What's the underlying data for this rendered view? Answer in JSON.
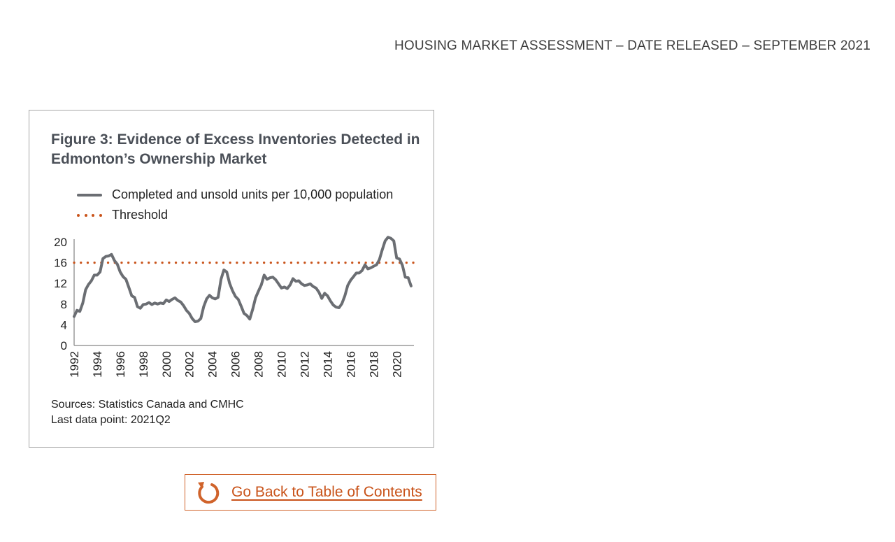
{
  "header": {
    "text": "HOUSING MARKET ASSESSMENT – DATE RELEASED – SEPTEMBER 2021"
  },
  "figure": {
    "title": "Figure 3: Evidence of Excess Inventories Detected in Edmonton’s Ownership Market",
    "sources": "Sources: Statistics Canada and CMHC",
    "last_point": "Last data point: 2021Q2"
  },
  "colors": {
    "series": "#6b6e73",
    "threshold": "#c9531a",
    "accent": "#d0632b"
  },
  "chart_data": {
    "type": "line",
    "title": "Figure 3: Evidence of Excess Inventories Detected in Edmonton’s Ownership Market",
    "xlabel": "",
    "ylabel": "",
    "xlim": [
      1992,
      2021.5
    ],
    "ylim": [
      0,
      20
    ],
    "yticks": [
      0,
      4,
      8,
      12,
      16,
      20
    ],
    "xticks": [
      1992,
      1994,
      1996,
      1998,
      2000,
      2002,
      2004,
      2006,
      2008,
      2010,
      2012,
      2014,
      2016,
      2018,
      2020
    ],
    "grid": false,
    "legend_position": "top",
    "series": [
      {
        "name": "Completed and unsold units per 10,000 population",
        "style": "solid",
        "points": [
          [
            1992.0,
            5.6
          ],
          [
            1992.25,
            6.8
          ],
          [
            1992.5,
            6.6
          ],
          [
            1992.75,
            8.2
          ],
          [
            1993.0,
            10.8
          ],
          [
            1993.25,
            11.8
          ],
          [
            1993.5,
            12.5
          ],
          [
            1993.75,
            13.6
          ],
          [
            1994.0,
            13.6
          ],
          [
            1994.25,
            14.2
          ],
          [
            1994.5,
            16.8
          ],
          [
            1994.75,
            17.2
          ],
          [
            1995.0,
            17.3
          ],
          [
            1995.25,
            17.6
          ],
          [
            1995.5,
            16.4
          ],
          [
            1995.75,
            15.7
          ],
          [
            1996.0,
            14.2
          ],
          [
            1996.25,
            13.3
          ],
          [
            1996.5,
            12.8
          ],
          [
            1996.75,
            11.2
          ],
          [
            1997.0,
            9.6
          ],
          [
            1997.25,
            9.3
          ],
          [
            1997.5,
            7.5
          ],
          [
            1997.75,
            7.2
          ],
          [
            1998.0,
            7.9
          ],
          [
            1998.25,
            8.0
          ],
          [
            1998.5,
            8.3
          ],
          [
            1998.75,
            7.9
          ],
          [
            1999.0,
            8.2
          ],
          [
            1999.25,
            8.0
          ],
          [
            1999.5,
            8.2
          ],
          [
            1999.75,
            8.1
          ],
          [
            2000.0,
            8.8
          ],
          [
            2000.25,
            8.5
          ],
          [
            2000.5,
            8.9
          ],
          [
            2000.75,
            9.2
          ],
          [
            2001.0,
            8.7
          ],
          [
            2001.25,
            8.4
          ],
          [
            2001.5,
            7.7
          ],
          [
            2001.75,
            6.8
          ],
          [
            2002.0,
            6.2
          ],
          [
            2002.25,
            5.2
          ],
          [
            2002.5,
            4.6
          ],
          [
            2002.75,
            4.7
          ],
          [
            2003.0,
            5.2
          ],
          [
            2003.25,
            7.5
          ],
          [
            2003.5,
            9.0
          ],
          [
            2003.75,
            9.7
          ],
          [
            2004.0,
            9.2
          ],
          [
            2004.25,
            9.0
          ],
          [
            2004.5,
            9.3
          ],
          [
            2004.75,
            12.8
          ],
          [
            2005.0,
            14.6
          ],
          [
            2005.25,
            14.2
          ],
          [
            2005.5,
            12.0
          ],
          [
            2005.75,
            10.6
          ],
          [
            2006.0,
            9.5
          ],
          [
            2006.25,
            8.9
          ],
          [
            2006.5,
            7.6
          ],
          [
            2006.75,
            6.2
          ],
          [
            2007.0,
            5.8
          ],
          [
            2007.25,
            5.1
          ],
          [
            2007.5,
            7.0
          ],
          [
            2007.75,
            9.2
          ],
          [
            2008.0,
            10.5
          ],
          [
            2008.25,
            11.7
          ],
          [
            2008.5,
            13.6
          ],
          [
            2008.75,
            12.8
          ],
          [
            2009.0,
            13.1
          ],
          [
            2009.25,
            13.2
          ],
          [
            2009.5,
            12.7
          ],
          [
            2009.75,
            11.9
          ],
          [
            2010.0,
            11.1
          ],
          [
            2010.25,
            11.3
          ],
          [
            2010.5,
            11.0
          ],
          [
            2010.75,
            11.7
          ],
          [
            2011.0,
            12.9
          ],
          [
            2011.25,
            12.4
          ],
          [
            2011.5,
            12.5
          ],
          [
            2011.75,
            11.9
          ],
          [
            2012.0,
            11.6
          ],
          [
            2012.25,
            11.7
          ],
          [
            2012.5,
            11.9
          ],
          [
            2012.75,
            11.4
          ],
          [
            2013.0,
            11.1
          ],
          [
            2013.25,
            10.3
          ],
          [
            2013.5,
            9.1
          ],
          [
            2013.75,
            10.1
          ],
          [
            2014.0,
            9.6
          ],
          [
            2014.25,
            8.6
          ],
          [
            2014.5,
            7.8
          ],
          [
            2014.75,
            7.4
          ],
          [
            2015.0,
            7.3
          ],
          [
            2015.25,
            8.1
          ],
          [
            2015.5,
            9.6
          ],
          [
            2015.75,
            11.6
          ],
          [
            2016.0,
            12.6
          ],
          [
            2016.25,
            13.3
          ],
          [
            2016.5,
            14.0
          ],
          [
            2016.75,
            14.0
          ],
          [
            2017.0,
            14.5
          ],
          [
            2017.25,
            15.6
          ],
          [
            2017.5,
            14.8
          ],
          [
            2017.75,
            15.0
          ],
          [
            2018.0,
            15.3
          ],
          [
            2018.25,
            15.6
          ],
          [
            2018.5,
            16.6
          ],
          [
            2018.75,
            18.5
          ],
          [
            2019.0,
            20.2
          ],
          [
            2019.25,
            20.9
          ],
          [
            2019.5,
            20.7
          ],
          [
            2019.75,
            20.2
          ],
          [
            2020.0,
            16.9
          ],
          [
            2020.25,
            16.7
          ],
          [
            2020.5,
            15.5
          ],
          [
            2020.75,
            13.2
          ],
          [
            2021.0,
            13.1
          ],
          [
            2021.25,
            11.5
          ]
        ]
      },
      {
        "name": "Threshold",
        "style": "dotted",
        "points": [
          [
            1992.0,
            16
          ],
          [
            2021.5,
            16
          ]
        ]
      }
    ]
  },
  "back_button": {
    "label": "Go Back to Table of Contents",
    "icon": "undo-arrow-icon"
  }
}
